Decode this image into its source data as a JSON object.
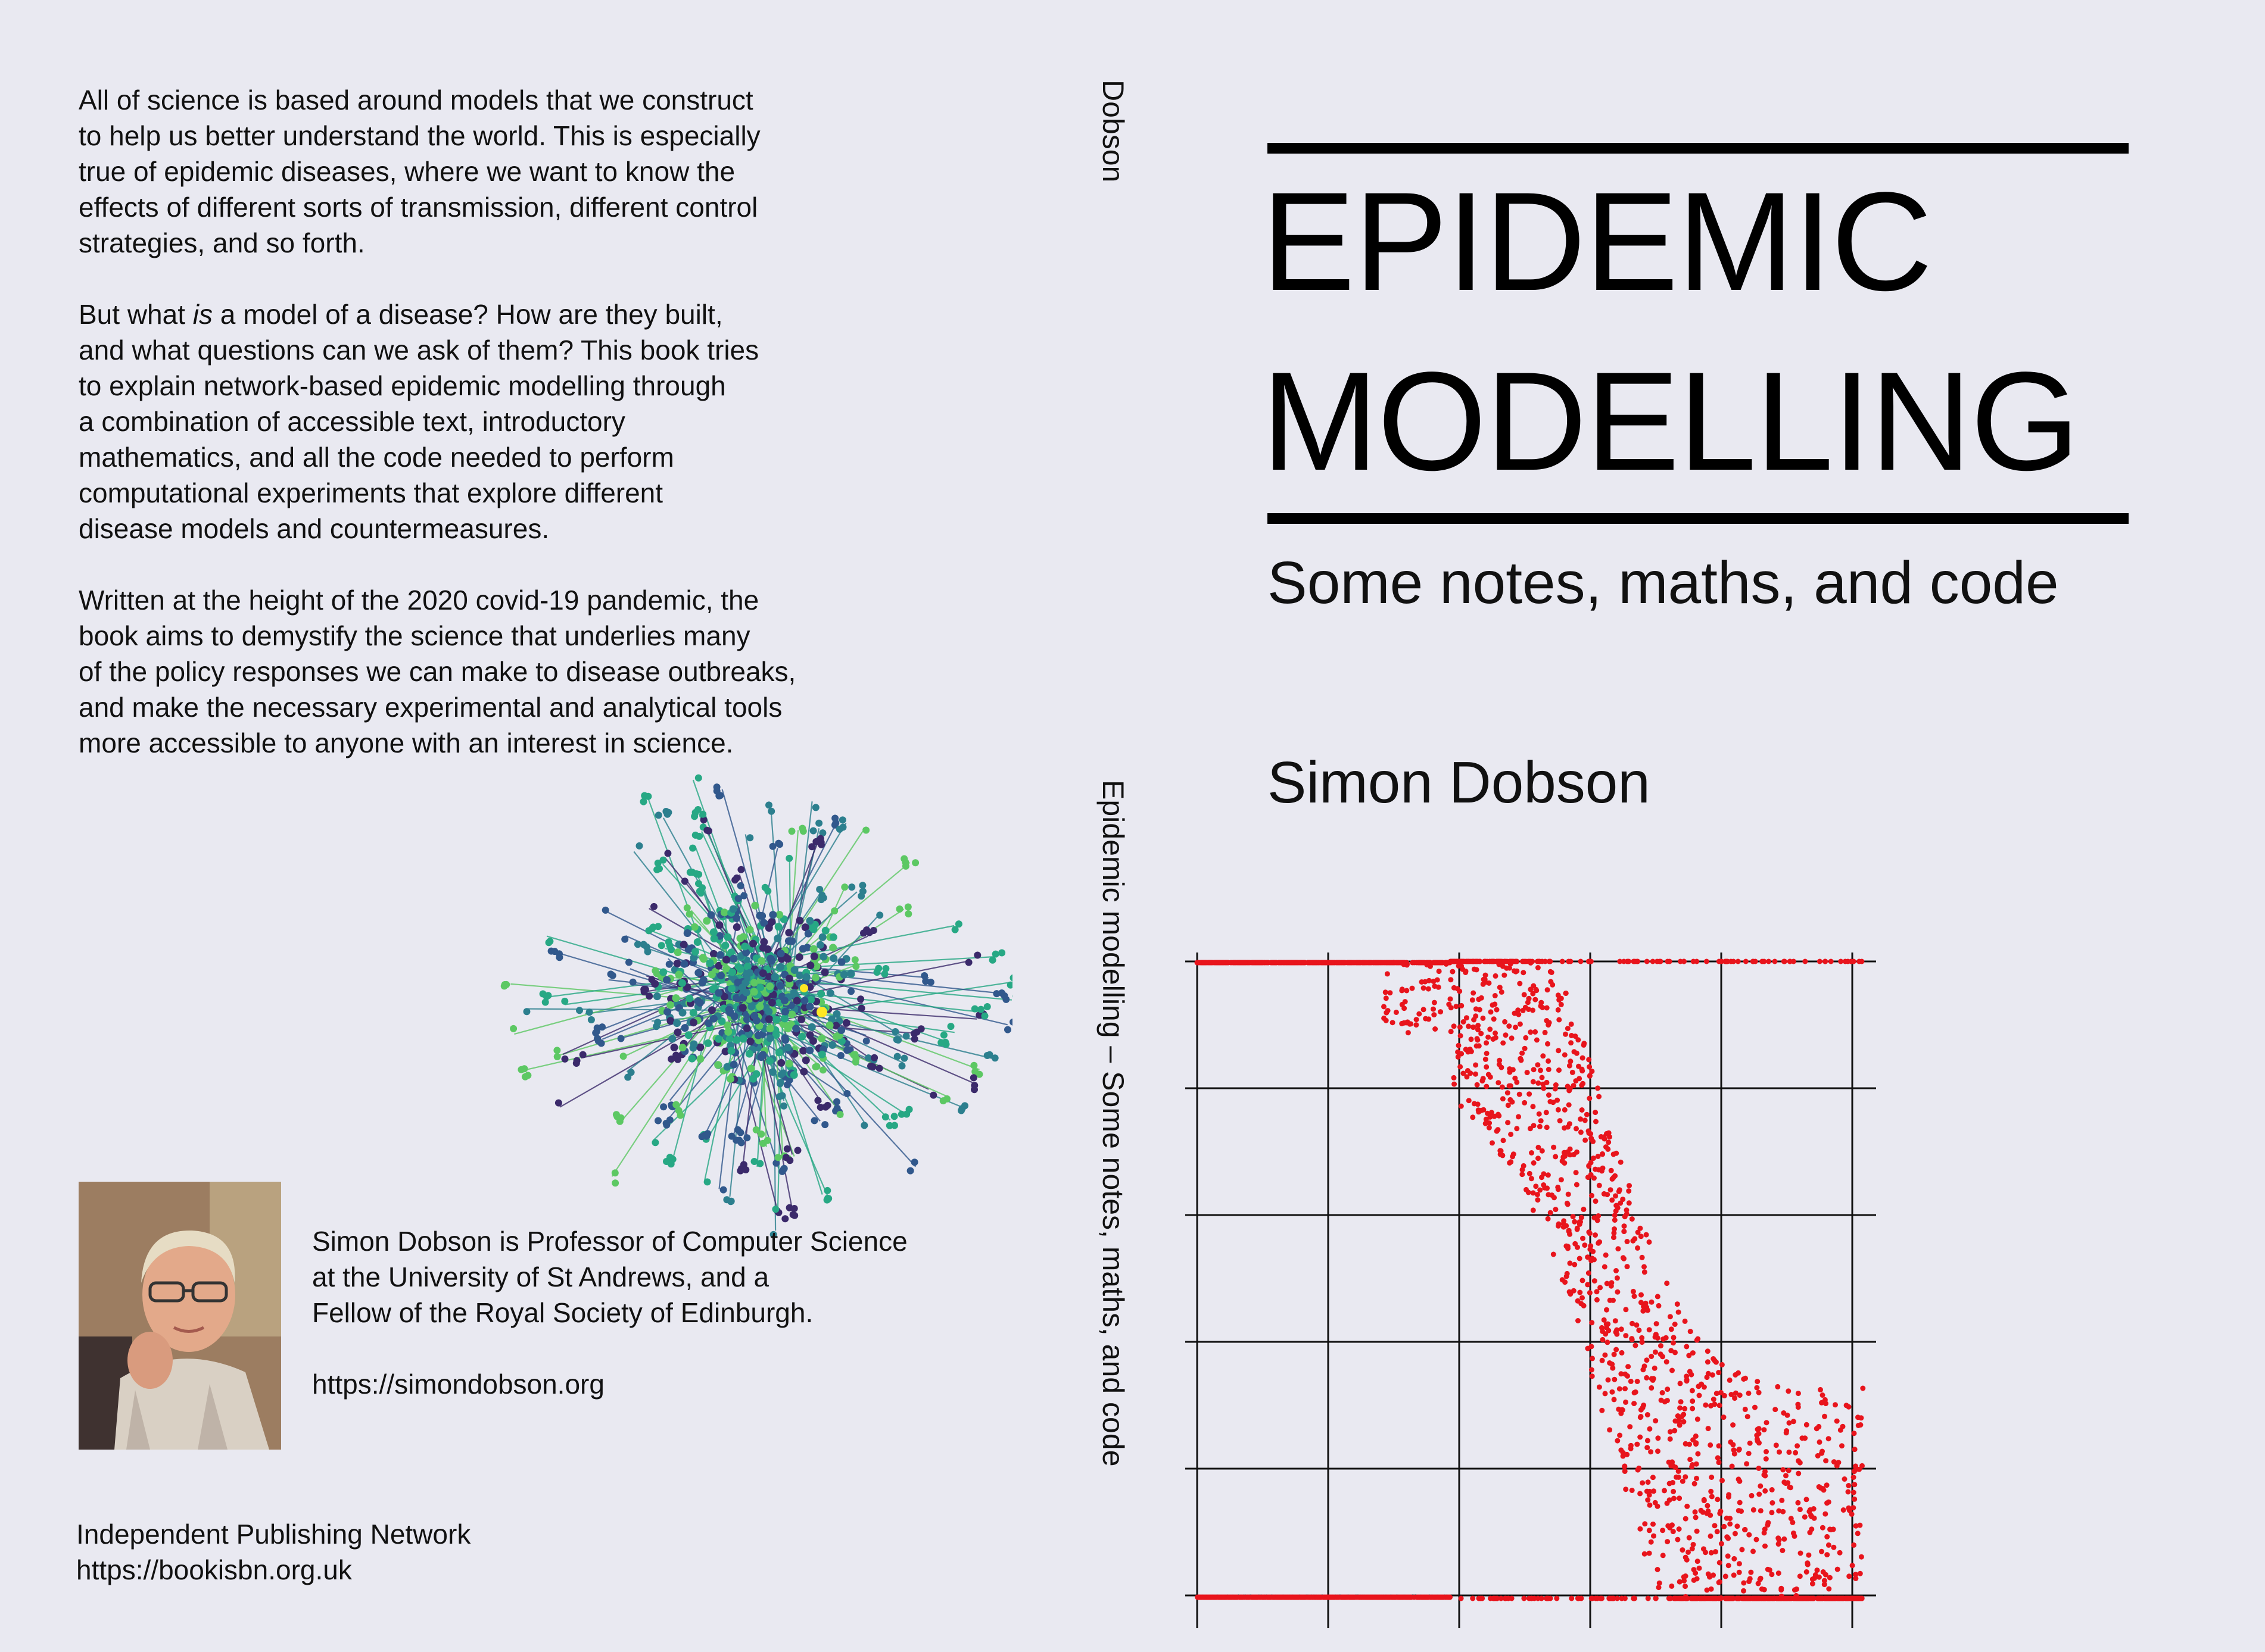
{
  "back_cover": {
    "paragraph1": [
      "All of science is based around models that we construct",
      "to help us better understand the world. This is especially",
      "true of epidemic diseases, where we want to know the",
      "effects of different sorts of transmission, different control",
      "strategies, and so forth."
    ],
    "paragraph2_first_pre": "But what ",
    "paragraph2_first_em": "is",
    "paragraph2_first_post": " a model of a disease? How are they built,",
    "paragraph2_rest": [
      "and what questions can we ask of them? This book tries",
      "to explain network-based epidemic modelling through",
      "a combination of accessible text, introductory",
      "mathematics, and all the code needed to perform",
      "computational experiments that explore different",
      "disease models and countermeasures."
    ],
    "paragraph3": [
      "Written at the height of the 2020 covid-19 pandemic, the",
      "book aims to demystify the science that underlies many",
      "of the policy responses we can make to disease outbreaks,",
      "and make the necessary experimental and analytical tools",
      "more accessible to anyone with an interest in science."
    ],
    "bio": [
      "Simon Dobson is Professor of Computer Science",
      "at the University of St Andrews, and a",
      "Fellow of the Royal Society of Edinburgh."
    ],
    "website": "https://simondobson.org",
    "publisher": "Independent Publishing Network",
    "publisher_url": "https://bookisbn.org.uk"
  },
  "spine": {
    "author": "Dobson",
    "title": "Epidemic modelling – Some notes, maths, and code"
  },
  "front_cover": {
    "title_line1": "EPIDEMIC",
    "title_line2": "MODELLING",
    "subtitle": "Some notes, maths, and code",
    "author": "Simon Dobson"
  },
  "colors": {
    "background": "#e9e9f1",
    "scatter_points": "#e8141c",
    "network_palette": [
      "#3b2a6b",
      "#31588c",
      "#2c7f8e",
      "#27a884",
      "#5cc863",
      "#fde725"
    ]
  },
  "icons": {
    "network_graphic": "network-graph-illustration",
    "author_photo": "author-portrait-photo"
  },
  "chart_data": {
    "type": "scatter",
    "title": "",
    "xlabel": "",
    "ylabel": "",
    "grid": true,
    "axis_labels_shown": false,
    "series": [
      {
        "description_color": "#e8141c",
        "points_shape": "sigmoid transition from top-left to bottom-right, dense cloud"
      }
    ],
    "xlim": [
      0,
      5
    ],
    "ylim": [
      0,
      5
    ]
  }
}
